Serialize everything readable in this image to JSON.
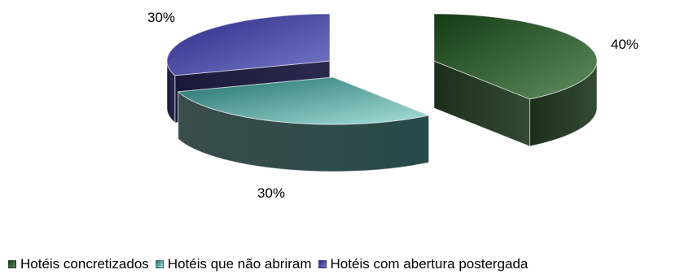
{
  "chart_data": {
    "type": "pie",
    "style": "3d-exploded",
    "slices": [
      {
        "label": "Hotéis concretizados",
        "value": 40,
        "value_label": "40%",
        "color": "#3c6e3c"
      },
      {
        "label": "Hotéis que não abriram",
        "value": 30,
        "value_label": "30%",
        "color": "#3e9a96"
      },
      {
        "label": "Hotéis com abertura postergada",
        "value": 30,
        "value_label": "30%",
        "color": "#4a4aa6"
      }
    ],
    "legend_position": "bottom"
  }
}
